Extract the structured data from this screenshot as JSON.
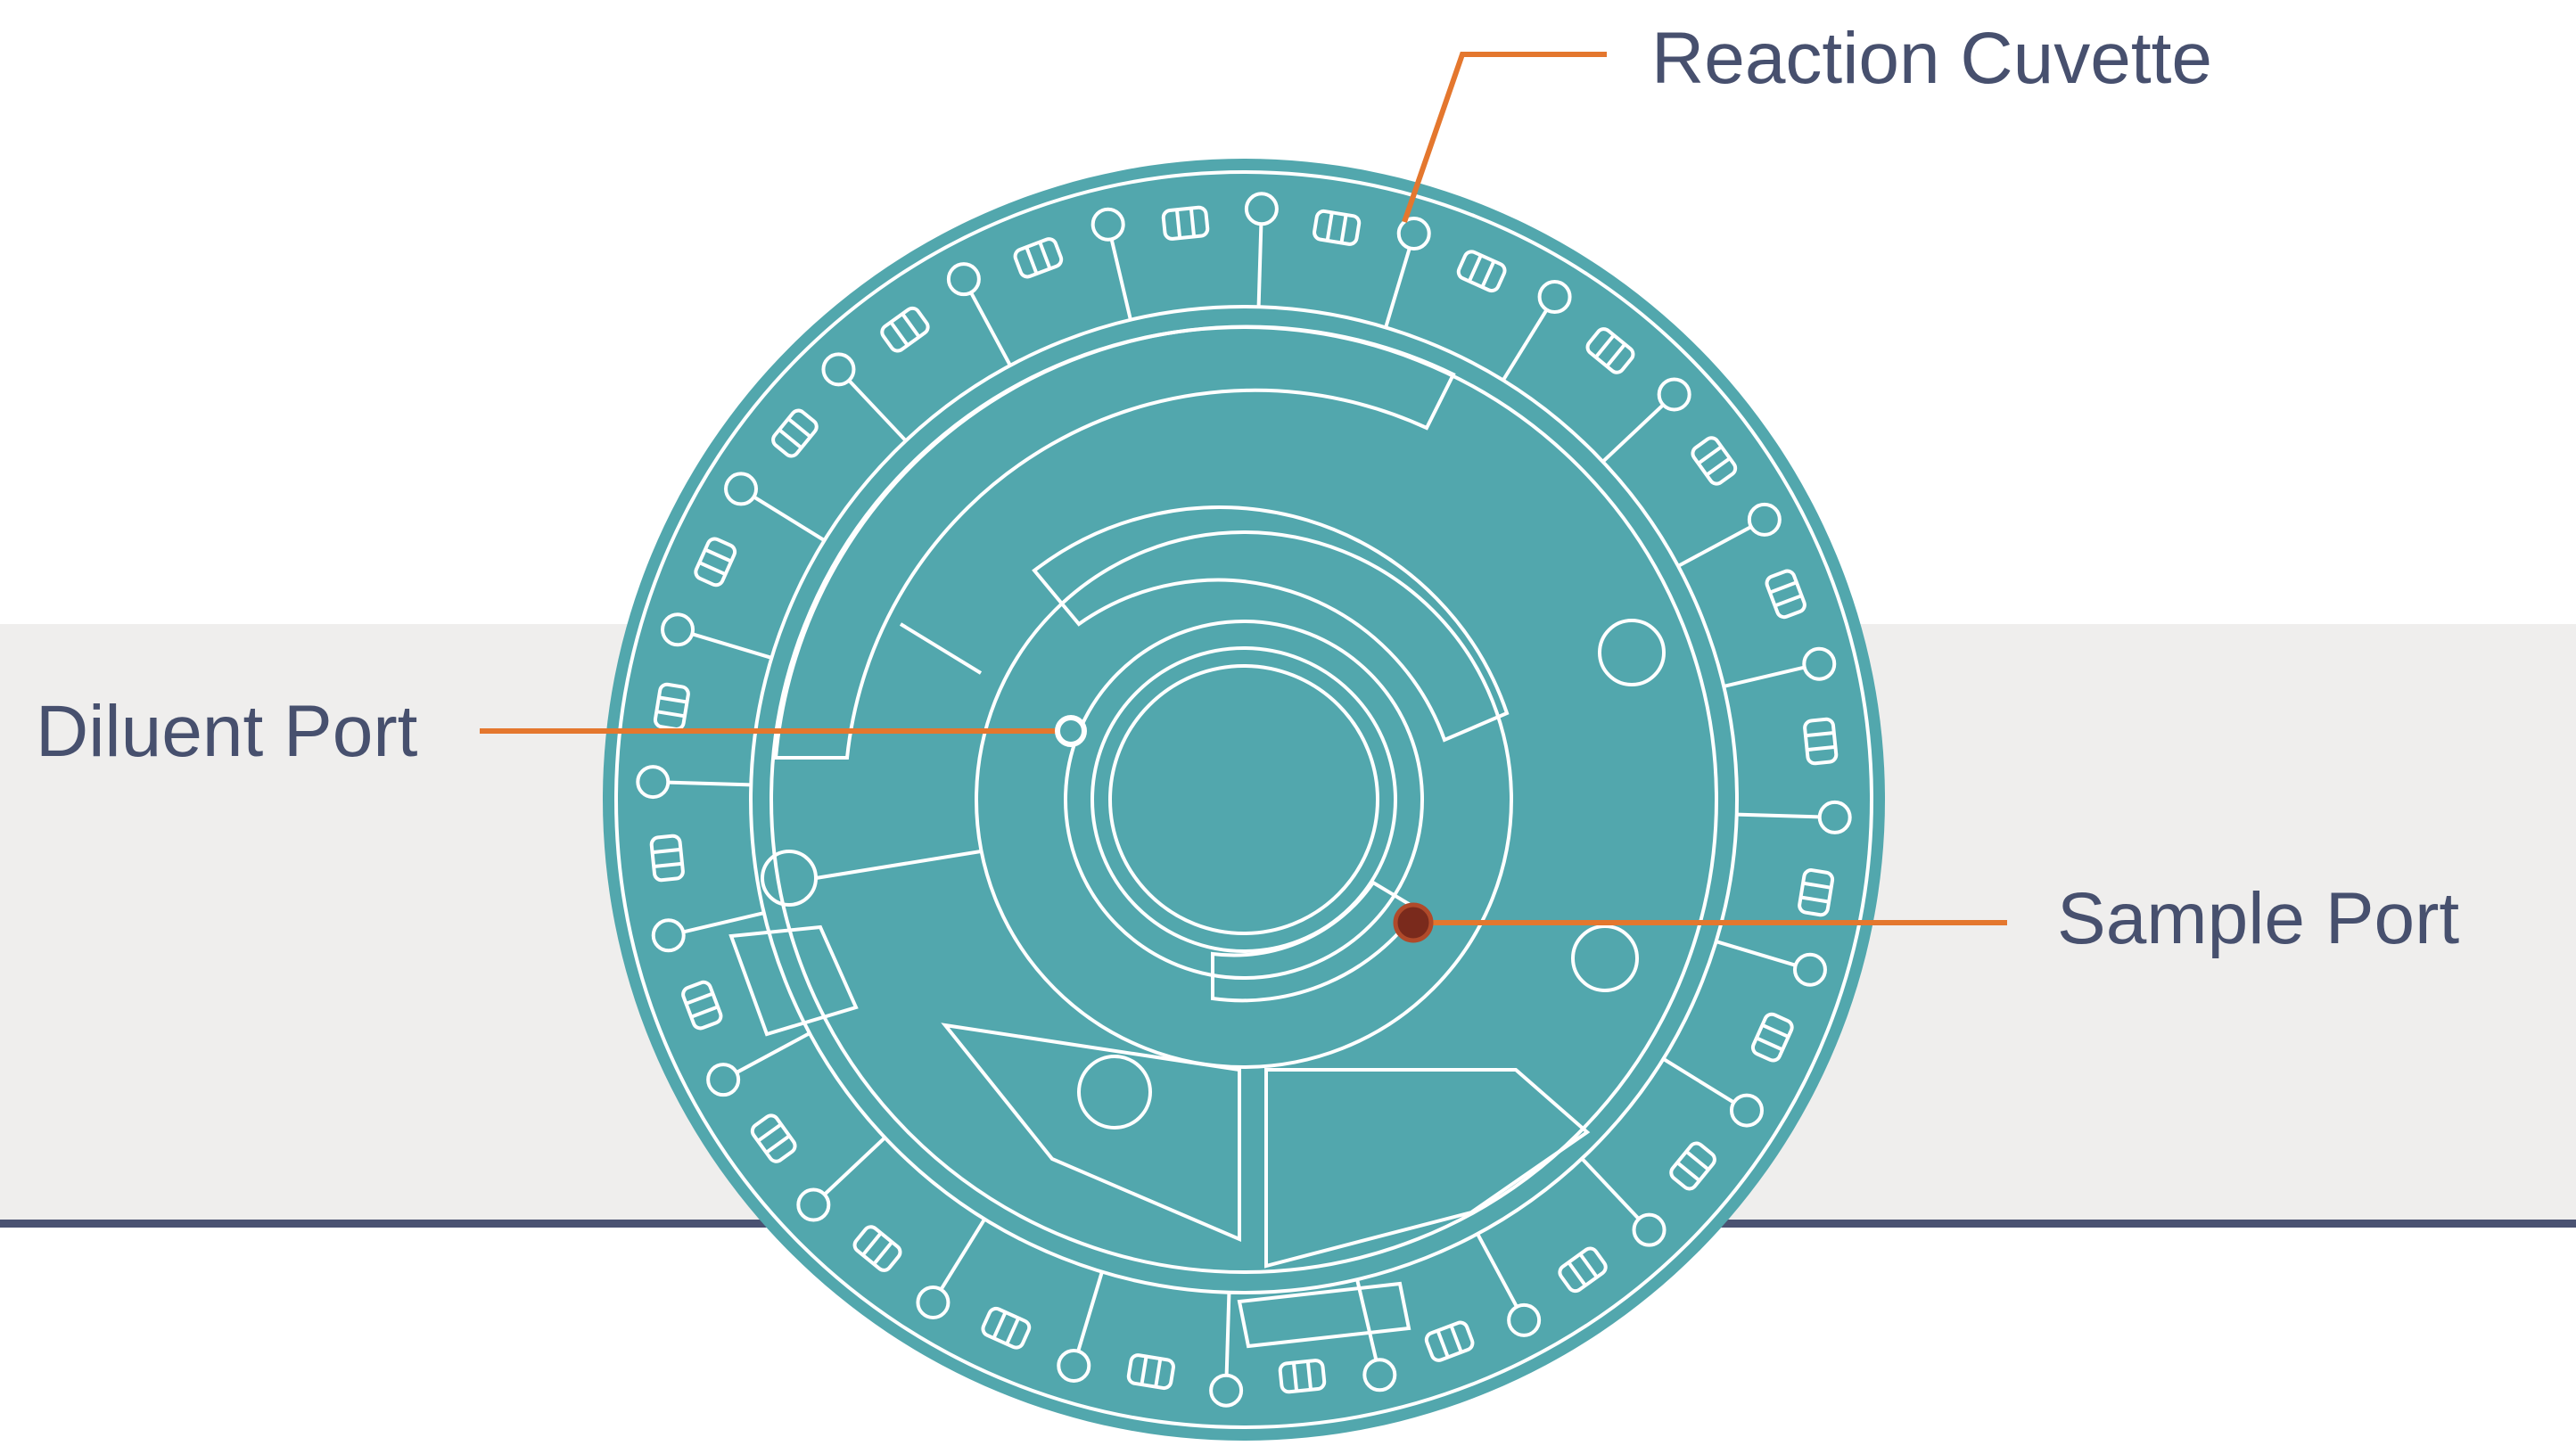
{
  "labels": {
    "reaction_cuvette": "Reaction Cuvette",
    "diluent_port": "Diluent Port",
    "sample_port": "Sample Port"
  }
}
